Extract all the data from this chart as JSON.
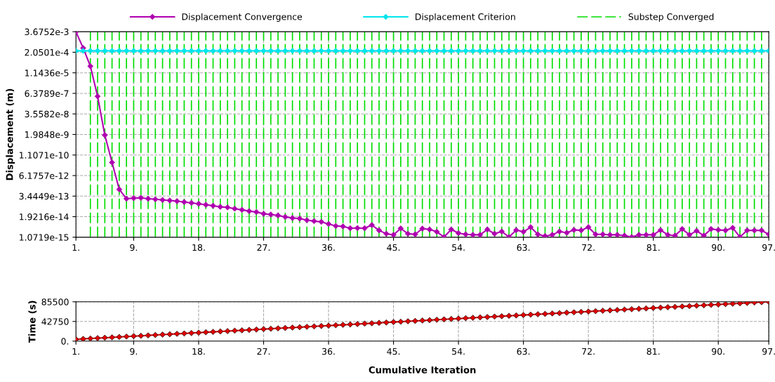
{
  "chart_data": [
    {
      "type": "line",
      "ylabel": "Displacement (m)",
      "log": true,
      "grid": true,
      "legend": "top",
      "x": [
        1,
        2,
        3,
        4,
        5,
        6,
        7,
        8,
        9,
        10,
        11,
        12,
        13,
        14,
        15,
        16,
        17,
        18,
        19,
        20,
        21,
        22,
        23,
        24,
        25,
        26,
        27,
        28,
        29,
        30,
        31,
        32,
        33,
        34,
        35,
        36,
        37,
        38,
        39,
        40,
        41,
        42,
        43,
        44,
        45,
        46,
        47,
        48,
        49,
        50,
        51,
        52,
        53,
        54,
        55,
        56,
        57,
        58,
        59,
        60,
        61,
        62,
        63,
        64,
        65,
        66,
        67,
        68,
        69,
        70,
        71,
        72,
        73,
        74,
        75,
        76,
        77,
        78,
        79,
        80,
        81,
        82,
        83,
        84,
        85,
        86,
        87,
        88,
        89,
        90,
        91,
        92,
        93,
        94,
        95,
        96,
        97
      ],
      "xlim": [
        1,
        97
      ],
      "xticks": [
        {
          "value": 1,
          "label": "1."
        },
        {
          "value": 9,
          "label": "9."
        },
        {
          "value": 18,
          "label": "18."
        },
        {
          "value": 27,
          "label": "27."
        },
        {
          "value": 36,
          "label": "36."
        },
        {
          "value": 45,
          "label": "45."
        },
        {
          "value": 54,
          "label": "54."
        },
        {
          "value": 63,
          "label": "63."
        },
        {
          "value": 72,
          "label": "72."
        },
        {
          "value": 81,
          "label": "81."
        },
        {
          "value": 90,
          "label": "90."
        },
        {
          "value": 97,
          "label": "97."
        }
      ],
      "ylim": [
        1.0719e-15,
        0.0036752
      ],
      "yticks": [
        {
          "value": 1.0719e-15,
          "label": "1.0719e-15"
        },
        {
          "value": 1.9216e-14,
          "label": "1.9216e-14"
        },
        {
          "value": 3.4449e-13,
          "label": "3.4449e-13"
        },
        {
          "value": 6.1757e-12,
          "label": "6.1757e-12"
        },
        {
          "value": 1.1071e-10,
          "label": "1.1071e-10"
        },
        {
          "value": 1.9848e-09,
          "label": "1.9848e-9"
        },
        {
          "value": 3.5582e-08,
          "label": "3.5582e-8"
        },
        {
          "value": 6.3789e-07,
          "label": "6.3789e-7"
        },
        {
          "value": 1.1436e-05,
          "label": "1.1436e-5"
        },
        {
          "value": 0.00020501,
          "label": "2.0501e-4"
        },
        {
          "value": 0.0036752,
          "label": "3.6752e-3"
        }
      ],
      "series": [
        {
          "name": "Displacement Convergence",
          "color": "#b000b0",
          "marker": "diamond",
          "values": [
            0.0036,
            0.00037,
            2.9e-05,
            4.2e-07,
            1.8e-09,
            3.9e-11,
            8.9e-13,
            2.4e-13,
            2.6e-13,
            2.7e-13,
            2.4e-13,
            2.2e-13,
            2e-13,
            1.86e-13,
            1.7e-13,
            1.5e-13,
            1.33e-13,
            1.17e-13,
            1.02e-13,
            8.9e-14,
            7.6e-14,
            7.1e-14,
            5.9e-14,
            5e-14,
            4.2e-14,
            3.7e-14,
            2.9e-14,
            2.6e-14,
            2.3e-14,
            1.85e-14,
            1.6e-14,
            1.47e-14,
            1.17e-14,
            1.03e-14,
            9.3e-15,
            6.9e-15,
            5.2e-15,
            4.9e-15,
            3.8e-15,
            3.9e-15,
            3.8e-15,
            5.9e-15,
            2.8e-15,
            1.75e-15,
            1.5e-15,
            3.7e-15,
            1.75e-15,
            1.6e-15,
            3.6e-15,
            3.2e-15,
            2.3e-15,
            1.1e-15,
            3.2e-15,
            1.9e-15,
            1.6e-15,
            1.5e-15,
            1.5e-15,
            3.2e-15,
            1.75e-15,
            2.4e-15,
            1.1e-15,
            2.9e-15,
            2.3e-15,
            4.4e-15,
            1.6e-15,
            1.25e-15,
            1.5e-15,
            2.4e-15,
            2e-15,
            3e-15,
            2.8e-15,
            4.4e-15,
            1.6e-15,
            1.6e-15,
            1.5e-15,
            1.5e-15,
            1.34e-15,
            1.1e-15,
            1.5e-15,
            1.5e-15,
            1.5e-15,
            2.9e-15,
            1.5e-15,
            1.34e-15,
            3.4e-15,
            1.5e-15,
            2.6e-15,
            1.34e-15,
            3.4e-15,
            3e-15,
            2.8e-15,
            4e-15,
            1.1e-15,
            2.8e-15,
            2.8e-15,
            2.8e-15,
            1.6e-15
          ]
        },
        {
          "name": "Displacement Criterion",
          "color": "#00e5ee",
          "marker": "diamond",
          "values": [
            0.00025,
            0.00025,
            0.00025,
            0.00025,
            0.00025,
            0.00025,
            0.00025,
            0.00025,
            0.00025,
            0.00025,
            0.00025,
            0.00025,
            0.00025,
            0.00025,
            0.00025,
            0.00025,
            0.00025,
            0.00025,
            0.00025,
            0.00025,
            0.00025,
            0.00025,
            0.00025,
            0.00025,
            0.00025,
            0.00025,
            0.00025,
            0.00025,
            0.00025,
            0.00025,
            0.00025,
            0.00025,
            0.00025,
            0.00025,
            0.00025,
            0.00025,
            0.00025,
            0.00025,
            0.00025,
            0.00025,
            0.00025,
            0.00025,
            0.00025,
            0.00025,
            0.00025,
            0.00025,
            0.00025,
            0.00025,
            0.00025,
            0.00025,
            0.00025,
            0.00025,
            0.00025,
            0.00025,
            0.00025,
            0.00025,
            0.00025,
            0.00025,
            0.00025,
            0.00025,
            0.00025,
            0.00025,
            0.00025,
            0.00025,
            0.00025,
            0.00025,
            0.00025,
            0.00025,
            0.00025,
            0.00025,
            0.00025,
            0.00025,
            0.00025,
            0.00025,
            0.00025,
            0.00025,
            0.00025,
            0.00025,
            0.00025,
            0.00025,
            0.00025,
            0.00025,
            0.00025,
            0.00025,
            0.00025,
            0.00025,
            0.00025,
            0.00025,
            0.00025,
            0.00025,
            0.00025,
            0.00025,
            0.00025,
            0.00025,
            0.00025,
            0.00025,
            0.00025
          ]
        }
      ],
      "ref_lines": [
        {
          "axis": "x",
          "value": 3,
          "label": "Substep Converged",
          "color": "#00dd00",
          "line_style": "dashed"
        },
        {
          "axis": "x",
          "value": 4,
          "color": "#00dd00",
          "line_style": "dashed"
        },
        {
          "axis": "x",
          "value": 5,
          "color": "#00dd00",
          "line_style": "dashed"
        },
        {
          "axis": "x",
          "value": 6,
          "color": "#00dd00",
          "line_style": "dashed"
        },
        {
          "axis": "x",
          "value": 7,
          "color": "#00dd00",
          "line_style": "dashed"
        },
        {
          "axis": "x",
          "value": 8,
          "color": "#00dd00",
          "line_style": "dashed"
        },
        {
          "axis": "x",
          "value": 9,
          "color": "#00dd00",
          "line_style": "dashed"
        },
        {
          "axis": "x",
          "value": 10,
          "color": "#00dd00",
          "line_style": "dashed"
        },
        {
          "axis": "x",
          "value": 11,
          "color": "#00dd00",
          "line_style": "dashed"
        },
        {
          "axis": "x",
          "value": 12,
          "color": "#00dd00",
          "line_style": "dashed"
        },
        {
          "axis": "x",
          "value": 13,
          "color": "#00dd00",
          "line_style": "dashed"
        },
        {
          "axis": "x",
          "value": 14,
          "color": "#00dd00",
          "line_style": "dashed"
        },
        {
          "axis": "x",
          "value": 15,
          "color": "#00dd00",
          "line_style": "dashed"
        },
        {
          "axis": "x",
          "value": 16,
          "color": "#00dd00",
          "line_style": "dashed"
        },
        {
          "axis": "x",
          "value": 17,
          "color": "#00dd00",
          "line_style": "dashed"
        },
        {
          "axis": "x",
          "value": 18,
          "color": "#00dd00",
          "line_style": "dashed"
        },
        {
          "axis": "x",
          "value": 19,
          "color": "#00dd00",
          "line_style": "dashed"
        },
        {
          "axis": "x",
          "value": 20,
          "color": "#00dd00",
          "line_style": "dashed"
        },
        {
          "axis": "x",
          "value": 21,
          "color": "#00dd00",
          "line_style": "dashed"
        },
        {
          "axis": "x",
          "value": 22,
          "color": "#00dd00",
          "line_style": "dashed"
        },
        {
          "axis": "x",
          "value": 23,
          "color": "#00dd00",
          "line_style": "dashed"
        },
        {
          "axis": "x",
          "value": 24,
          "color": "#00dd00",
          "line_style": "dashed"
        },
        {
          "axis": "x",
          "value": 25,
          "color": "#00dd00",
          "line_style": "dashed"
        },
        {
          "axis": "x",
          "value": 26,
          "color": "#00dd00",
          "line_style": "dashed"
        },
        {
          "axis": "x",
          "value": 27,
          "color": "#00dd00",
          "line_style": "dashed"
        },
        {
          "axis": "x",
          "value": 28,
          "color": "#00dd00",
          "line_style": "dashed"
        },
        {
          "axis": "x",
          "value": 29,
          "color": "#00dd00",
          "line_style": "dashed"
        },
        {
          "axis": "x",
          "value": 30,
          "color": "#00dd00",
          "line_style": "dashed"
        },
        {
          "axis": "x",
          "value": 31,
          "color": "#00dd00",
          "line_style": "dashed"
        },
        {
          "axis": "x",
          "value": 32,
          "color": "#00dd00",
          "line_style": "dashed"
        },
        {
          "axis": "x",
          "value": 33,
          "color": "#00dd00",
          "line_style": "dashed"
        },
        {
          "axis": "x",
          "value": 34,
          "color": "#00dd00",
          "line_style": "dashed"
        },
        {
          "axis": "x",
          "value": 35,
          "color": "#00dd00",
          "line_style": "dashed"
        },
        {
          "axis": "x",
          "value": 36,
          "color": "#00dd00",
          "line_style": "dashed"
        },
        {
          "axis": "x",
          "value": 37,
          "color": "#00dd00",
          "line_style": "dashed"
        },
        {
          "axis": "x",
          "value": 38,
          "color": "#00dd00",
          "line_style": "dashed"
        },
        {
          "axis": "x",
          "value": 39,
          "color": "#00dd00",
          "line_style": "dashed"
        },
        {
          "axis": "x",
          "value": 40,
          "color": "#00dd00",
          "line_style": "dashed"
        },
        {
          "axis": "x",
          "value": 41,
          "color": "#00dd00",
          "line_style": "dashed"
        },
        {
          "axis": "x",
          "value": 42,
          "color": "#00dd00",
          "line_style": "dashed"
        },
        {
          "axis": "x",
          "value": 43,
          "color": "#00dd00",
          "line_style": "dashed"
        },
        {
          "axis": "x",
          "value": 44,
          "color": "#00dd00",
          "line_style": "dashed"
        },
        {
          "axis": "x",
          "value": 45,
          "color": "#00dd00",
          "line_style": "dashed"
        },
        {
          "axis": "x",
          "value": 46,
          "color": "#00dd00",
          "line_style": "dashed"
        },
        {
          "axis": "x",
          "value": 47,
          "color": "#00dd00",
          "line_style": "dashed"
        },
        {
          "axis": "x",
          "value": 48,
          "color": "#00dd00",
          "line_style": "dashed"
        },
        {
          "axis": "x",
          "value": 49,
          "color": "#00dd00",
          "line_style": "dashed"
        },
        {
          "axis": "x",
          "value": 50,
          "color": "#00dd00",
          "line_style": "dashed"
        },
        {
          "axis": "x",
          "value": 51,
          "color": "#00dd00",
          "line_style": "dashed"
        },
        {
          "axis": "x",
          "value": 52,
          "color": "#00dd00",
          "line_style": "dashed"
        },
        {
          "axis": "x",
          "value": 53,
          "color": "#00dd00",
          "line_style": "dashed"
        },
        {
          "axis": "x",
          "value": 54,
          "color": "#00dd00",
          "line_style": "dashed"
        },
        {
          "axis": "x",
          "value": 55,
          "color": "#00dd00",
          "line_style": "dashed"
        },
        {
          "axis": "x",
          "value": 56,
          "color": "#00dd00",
          "line_style": "dashed"
        },
        {
          "axis": "x",
          "value": 57,
          "color": "#00dd00",
          "line_style": "dashed"
        },
        {
          "axis": "x",
          "value": 58,
          "color": "#00dd00",
          "line_style": "dashed"
        },
        {
          "axis": "x",
          "value": 59,
          "color": "#00dd00",
          "line_style": "dashed"
        },
        {
          "axis": "x",
          "value": 60,
          "color": "#00dd00",
          "line_style": "dashed"
        },
        {
          "axis": "x",
          "value": 61,
          "color": "#00dd00",
          "line_style": "dashed"
        },
        {
          "axis": "x",
          "value": 62,
          "color": "#00dd00",
          "line_style": "dashed"
        },
        {
          "axis": "x",
          "value": 63,
          "color": "#00dd00",
          "line_style": "dashed"
        },
        {
          "axis": "x",
          "value": 64,
          "color": "#00dd00",
          "line_style": "dashed"
        },
        {
          "axis": "x",
          "value": 65,
          "color": "#00dd00",
          "line_style": "dashed"
        },
        {
          "axis": "x",
          "value": 66,
          "color": "#00dd00",
          "line_style": "dashed"
        },
        {
          "axis": "x",
          "value": 67,
          "color": "#00dd00",
          "line_style": "dashed"
        },
        {
          "axis": "x",
          "value": 68,
          "color": "#00dd00",
          "line_style": "dashed"
        },
        {
          "axis": "x",
          "value": 69,
          "color": "#00dd00",
          "line_style": "dashed"
        },
        {
          "axis": "x",
          "value": 70,
          "color": "#00dd00",
          "line_style": "dashed"
        },
        {
          "axis": "x",
          "value": 71,
          "color": "#00dd00",
          "line_style": "dashed"
        },
        {
          "axis": "x",
          "value": 72,
          "color": "#00dd00",
          "line_style": "dashed"
        },
        {
          "axis": "x",
          "value": 73,
          "color": "#00dd00",
          "line_style": "dashed"
        },
        {
          "axis": "x",
          "value": 74,
          "color": "#00dd00",
          "line_style": "dashed"
        },
        {
          "axis": "x",
          "value": 75,
          "color": "#00dd00",
          "line_style": "dashed"
        },
        {
          "axis": "x",
          "value": 76,
          "color": "#00dd00",
          "line_style": "dashed"
        },
        {
          "axis": "x",
          "value": 77,
          "color": "#00dd00",
          "line_style": "dashed"
        },
        {
          "axis": "x",
          "value": 78,
          "color": "#00dd00",
          "line_style": "dashed"
        },
        {
          "axis": "x",
          "value": 79,
          "color": "#00dd00",
          "line_style": "dashed"
        },
        {
          "axis": "x",
          "value": 80,
          "color": "#00dd00",
          "line_style": "dashed"
        },
        {
          "axis": "x",
          "value": 81,
          "color": "#00dd00",
          "line_style": "dashed"
        },
        {
          "axis": "x",
          "value": 82,
          "color": "#00dd00",
          "line_style": "dashed"
        },
        {
          "axis": "x",
          "value": 83,
          "color": "#00dd00",
          "line_style": "dashed"
        },
        {
          "axis": "x",
          "value": 84,
          "color": "#00dd00",
          "line_style": "dashed"
        },
        {
          "axis": "x",
          "value": 85,
          "color": "#00dd00",
          "line_style": "dashed"
        },
        {
          "axis": "x",
          "value": 86,
          "color": "#00dd00",
          "line_style": "dashed"
        },
        {
          "axis": "x",
          "value": 87,
          "color": "#00dd00",
          "line_style": "dashed"
        },
        {
          "axis": "x",
          "value": 88,
          "color": "#00dd00",
          "line_style": "dashed"
        },
        {
          "axis": "x",
          "value": 89,
          "color": "#00dd00",
          "line_style": "dashed"
        },
        {
          "axis": "x",
          "value": 90,
          "color": "#00dd00",
          "line_style": "dashed"
        },
        {
          "axis": "x",
          "value": 91,
          "color": "#00dd00",
          "line_style": "dashed"
        },
        {
          "axis": "x",
          "value": 92,
          "color": "#00dd00",
          "line_style": "dashed"
        },
        {
          "axis": "x",
          "value": 93,
          "color": "#00dd00",
          "line_style": "dashed"
        },
        {
          "axis": "x",
          "value": 94,
          "color": "#00dd00",
          "line_style": "dashed"
        },
        {
          "axis": "x",
          "value": 95,
          "color": "#00dd00",
          "line_style": "dashed"
        },
        {
          "axis": "x",
          "value": 96,
          "color": "#00dd00",
          "line_style": "dashed"
        }
      ]
    },
    {
      "type": "line",
      "ylabel": "Time (s)",
      "xlabel": "Cumulative Iteration",
      "grid": true,
      "x": [
        1,
        2,
        3,
        4,
        5,
        6,
        7,
        8,
        9,
        10,
        11,
        12,
        13,
        14,
        15,
        16,
        17,
        18,
        19,
        20,
        21,
        22,
        23,
        24,
        25,
        26,
        27,
        28,
        29,
        30,
        31,
        32,
        33,
        34,
        35,
        36,
        37,
        38,
        39,
        40,
        41,
        42,
        43,
        44,
        45,
        46,
        47,
        48,
        49,
        50,
        51,
        52,
        53,
        54,
        55,
        56,
        57,
        58,
        59,
        60,
        61,
        62,
        63,
        64,
        65,
        66,
        67,
        68,
        69,
        70,
        71,
        72,
        73,
        74,
        75,
        76,
        77,
        78,
        79,
        80,
        81,
        82,
        83,
        84,
        85,
        86,
        87,
        88,
        89,
        90,
        91,
        92,
        93,
        94,
        95,
        96,
        97
      ],
      "xlim": [
        1,
        97
      ],
      "xticks": [
        {
          "value": 1,
          "label": "1."
        },
        {
          "value": 9,
          "label": "9."
        },
        {
          "value": 18,
          "label": "18."
        },
        {
          "value": 27,
          "label": "27."
        },
        {
          "value": 36,
          "label": "36."
        },
        {
          "value": 45,
          "label": "45."
        },
        {
          "value": 54,
          "label": "54."
        },
        {
          "value": 63,
          "label": "63."
        },
        {
          "value": 72,
          "label": "72."
        },
        {
          "value": 81,
          "label": "81."
        },
        {
          "value": 90,
          "label": "90."
        },
        {
          "value": 97,
          "label": "97."
        }
      ],
      "ylim": [
        0,
        85500
      ],
      "yticks": [
        {
          "value": 0,
          "label": "0."
        },
        42750,
        85500
      ],
      "series": [
        {
          "color": "#e00000",
          "marker": "diamond",
          "values": [
            4000,
            4800,
            5700,
            6500,
            7400,
            8200,
            9100,
            9900,
            10800,
            11600,
            12500,
            13300,
            14200,
            15000,
            15900,
            16700,
            17600,
            18400,
            19300,
            20100,
            21000,
            21800,
            22700,
            23500,
            24400,
            25200,
            26100,
            26900,
            27800,
            28600,
            29500,
            30300,
            31200,
            32000,
            32900,
            33700,
            34600,
            35400,
            36300,
            37100,
            38000,
            38800,
            39700,
            40500,
            41400,
            42200,
            43100,
            43900,
            44800,
            45600,
            46500,
            47300,
            48200,
            49000,
            49900,
            50700,
            51600,
            52400,
            53300,
            54100,
            55000,
            55800,
            56700,
            57500,
            58400,
            59200,
            60100,
            60900,
            61800,
            62600,
            63500,
            64300,
            65200,
            66000,
            66900,
            67700,
            68600,
            69400,
            70300,
            71100,
            72000,
            72800,
            73700,
            74500,
            75400,
            76200,
            77100,
            77900,
            78800,
            79600,
            80500,
            81300,
            82200,
            83000,
            83900,
            84700,
            85400
          ]
        }
      ]
    }
  ]
}
